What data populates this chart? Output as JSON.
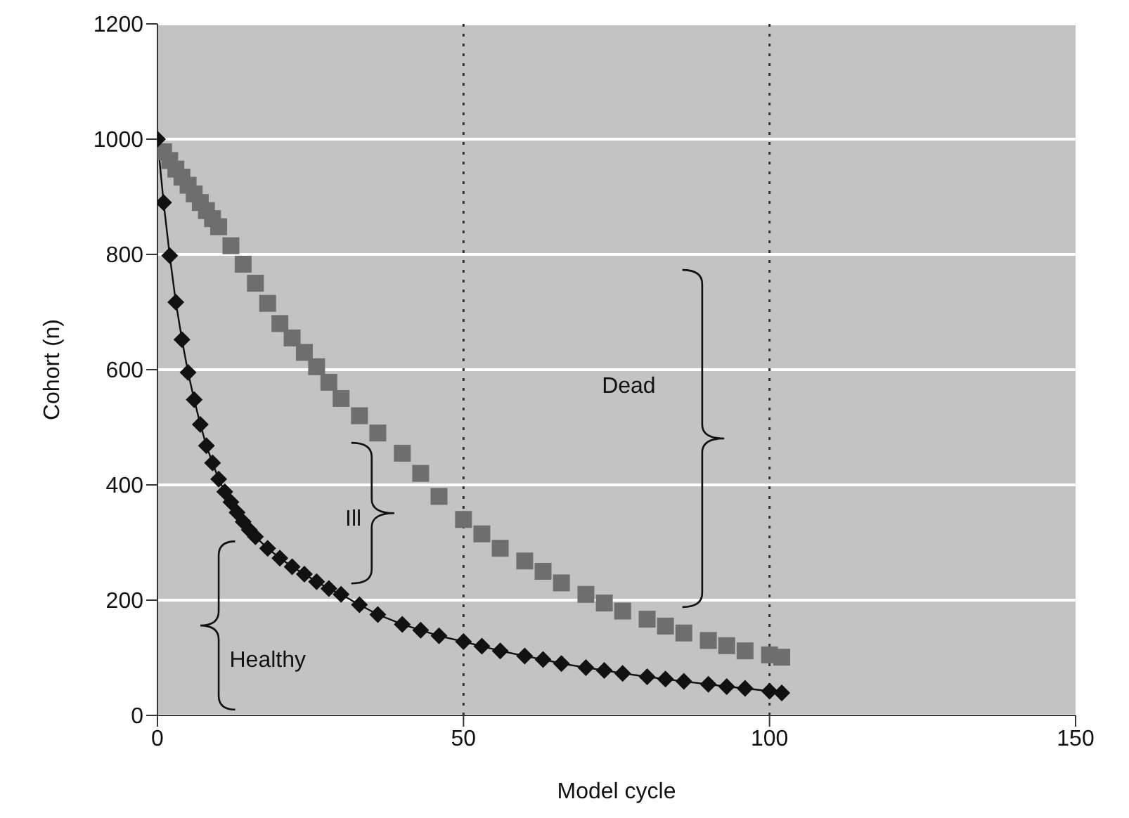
{
  "chart_data": {
    "type": "line",
    "xlabel": "Model cycle",
    "ylabel": "Cohort (n)",
    "xlim": [
      0,
      150
    ],
    "xticks": [
      0,
      50,
      100,
      150
    ],
    "ylim": [
      0,
      1200
    ],
    "yticks": [
      0,
      200,
      400,
      600,
      800,
      1000,
      1200
    ],
    "grid": "y",
    "legend": false,
    "series": [
      {
        "type": "scatter",
        "color": "#6e6e6e",
        "marker": "square",
        "x": [
          1,
          2,
          3,
          4,
          5,
          6,
          7,
          8,
          9,
          10,
          12,
          14,
          16,
          18,
          20,
          22,
          24,
          26,
          28,
          30,
          33,
          36,
          40,
          43,
          46,
          50,
          53,
          56,
          60,
          63,
          66,
          70,
          73,
          76,
          80,
          83,
          86,
          90,
          93,
          96,
          100,
          102
        ],
        "values": [
          978,
          963,
          948,
          934,
          920,
          905,
          890,
          876,
          862,
          848,
          815,
          783,
          750,
          715,
          680,
          655,
          630,
          605,
          578,
          550,
          520,
          490,
          455,
          420,
          380,
          340,
          315,
          290,
          268,
          250,
          230,
          210,
          195,
          181,
          167,
          155,
          143,
          130,
          121,
          112,
          105,
          101
        ]
      },
      {
        "color": "#111111",
        "marker": "diamond",
        "x": [
          0,
          1,
          2,
          3,
          4,
          5,
          6,
          7,
          8,
          9,
          10,
          11,
          12,
          13,
          14,
          15,
          16,
          18,
          20,
          22,
          24,
          26,
          28,
          30,
          33,
          36,
          40,
          43,
          46,
          50,
          53,
          56,
          60,
          63,
          66,
          70,
          73,
          76,
          80,
          83,
          86,
          90,
          93,
          96,
          100,
          102
        ],
        "values": [
          1000,
          890,
          798,
          717,
          652,
          595,
          548,
          505,
          468,
          438,
          410,
          388,
          370,
          352,
          336,
          322,
          310,
          290,
          273,
          258,
          245,
          232,
          220,
          210,
          192,
          175,
          158,
          148,
          138,
          128,
          120,
          112,
          103,
          97,
          90,
          83,
          78,
          73,
          67,
          63,
          59,
          54,
          50,
          47,
          42,
          39
        ]
      }
    ],
    "ref_lines": [
      {
        "axis": "x",
        "value": 50,
        "color": "#333333",
        "line_style": "dotted"
      },
      {
        "axis": "x",
        "value": 100,
        "color": "#333333",
        "line_style": "dotted"
      }
    ],
    "annotations": [
      "Healthy",
      "Ill",
      "Dead"
    ]
  }
}
